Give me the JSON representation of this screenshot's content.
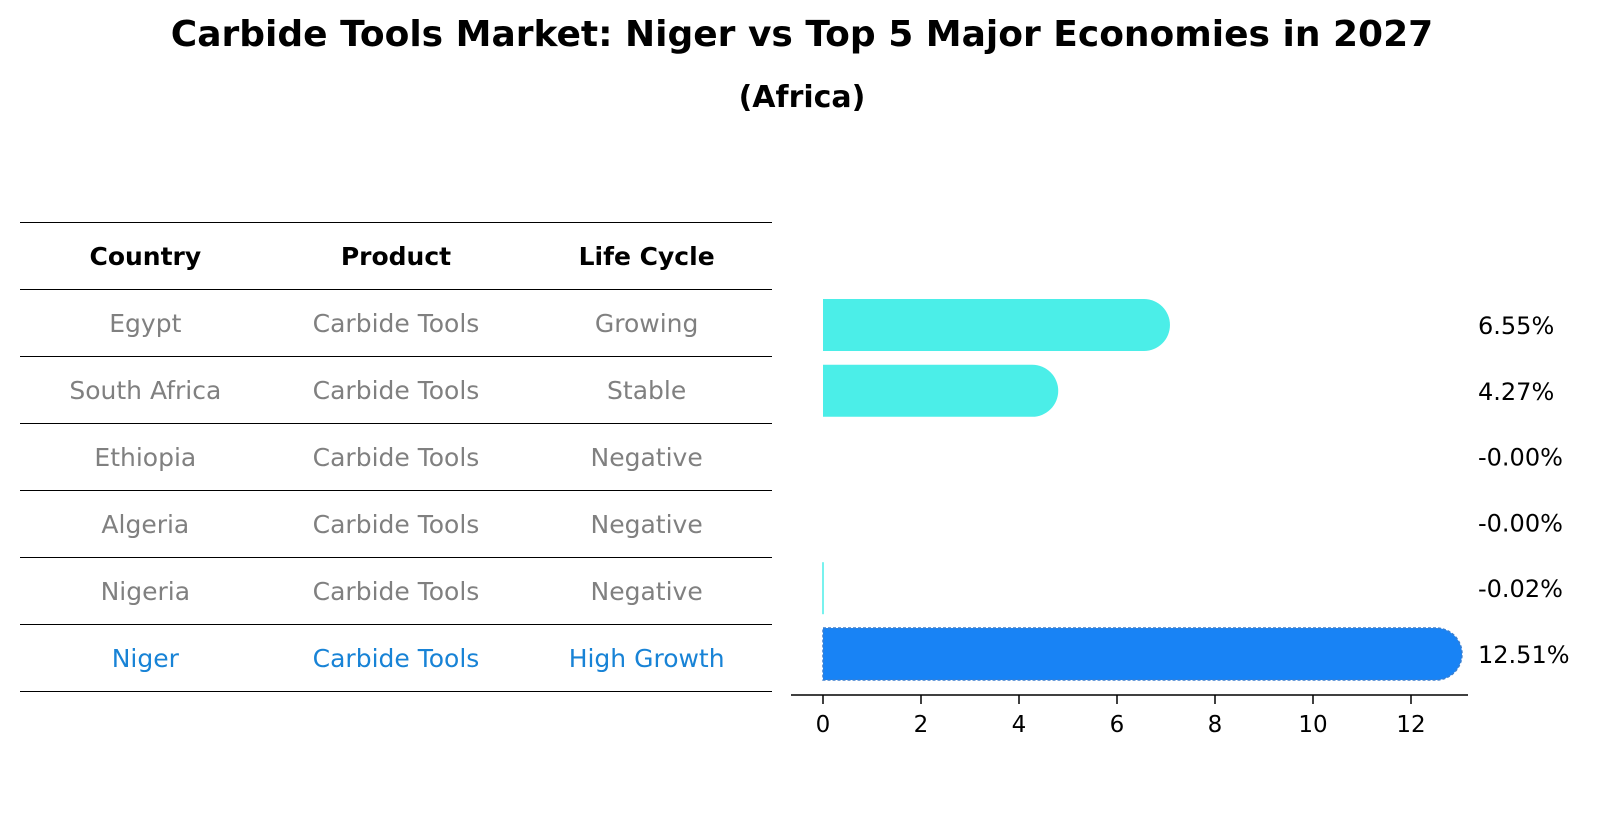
{
  "chart_data": {
    "type": "bar",
    "orientation": "horizontal",
    "title": "Carbide Tools Market: Niger vs Top 5 Major Economies in 2027",
    "subtitle": "(Africa)",
    "table": {
      "headers": [
        "Country",
        "Product",
        "Life Cycle"
      ],
      "rows": [
        [
          "Egypt",
          "Carbide Tools",
          "Growing"
        ],
        [
          "South Africa",
          "Carbide Tools",
          "Stable"
        ],
        [
          "Ethiopia",
          "Carbide Tools",
          "Negative"
        ],
        [
          "Algeria",
          "Carbide Tools",
          "Negative"
        ],
        [
          "Nigeria",
          "Carbide Tools",
          "Negative"
        ],
        [
          "Niger",
          "Carbide Tools",
          "High Growth"
        ]
      ],
      "highlight_row": 5
    },
    "categories": [
      "Egypt",
      "South Africa",
      "Ethiopia",
      "Algeria",
      "Nigeria",
      "Niger"
    ],
    "values": [
      6.55,
      4.27,
      -0.0,
      -0.0,
      -0.02,
      12.51
    ],
    "value_labels": [
      "6.55%",
      "4.27%",
      "-0.00%",
      "-0.00%",
      "-0.02%",
      "12.51%"
    ],
    "xlim": [
      0,
      13
    ],
    "xticks": [
      0,
      2,
      4,
      6,
      8,
      10,
      12
    ],
    "colors": {
      "default": "#4beee8",
      "highlight": "#1883f5",
      "highlight_text": "#1883d6",
      "muted_text": "#808080"
    },
    "grid": false,
    "xlabel": "",
    "ylabel": ""
  }
}
